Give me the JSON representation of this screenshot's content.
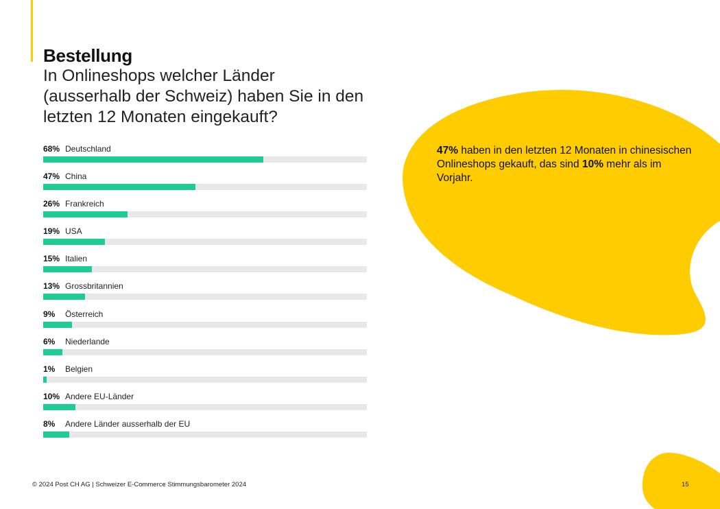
{
  "heading": {
    "title": "Bestellung",
    "question": "In Onlineshops welcher Länder (ausserhalb der Schweiz) haben Sie in den letzten 12 Monaten eingekauft?"
  },
  "chart_data": {
    "type": "bar",
    "orientation": "horizontal",
    "xlim": [
      0,
      100
    ],
    "unit": "%",
    "categories": [
      "Deutschland",
      "China",
      "Frankreich",
      "USA",
      "Italien",
      "Grossbritannien",
      "Österreich",
      "Niederlande",
      "Belgien",
      "Andere EU-Länder",
      "Andere Länder ausserhalb der EU"
    ],
    "values": [
      68,
      47,
      26,
      19,
      15,
      13,
      9,
      6,
      1,
      10,
      8
    ],
    "labels": [
      "68%",
      "47%",
      "26%",
      "19%",
      "15%",
      "13%",
      "9%",
      "6%",
      "1%",
      "10%",
      "8%"
    ],
    "bar_color": "#1fcc93",
    "track_color": "#e8e8e8"
  },
  "callout": {
    "highlight1": "47%",
    "text1": " haben in den letzten 12 Monaten in chinesischen Onlineshops gekauft, das sind ",
    "highlight2": "10%",
    "text2": " mehr als im Vorjahr."
  },
  "footer": {
    "copyright": "© 2024 Post CH AG | Schweizer E-Commerce Stimmungsbarometer 2024",
    "page_number": "15"
  },
  "colors": {
    "accent": "#ffcc00",
    "bar": "#1fcc93"
  }
}
